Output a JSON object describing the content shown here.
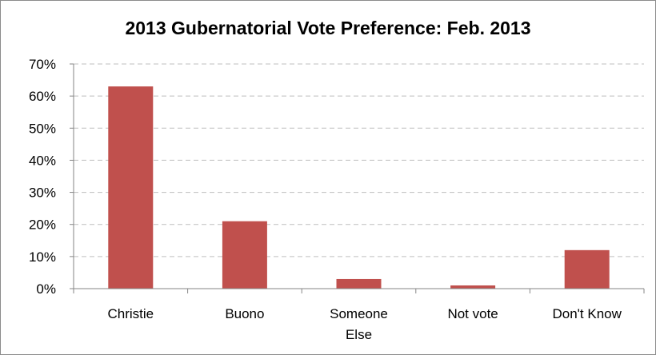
{
  "chart_data": {
    "type": "bar",
    "title": "2013 Gubernatorial Vote Preference: Feb. 2013",
    "categories": [
      [
        "Christie"
      ],
      [
        "Buono"
      ],
      [
        "Someone",
        "Else"
      ],
      [
        "Not vote"
      ],
      [
        "Don't Know"
      ]
    ],
    "values": [
      63,
      21,
      3,
      1,
      12
    ],
    "ylim": [
      0,
      70
    ],
    "ytick_values": [
      0,
      10,
      20,
      30,
      40,
      50,
      60,
      70
    ],
    "ytick_labels": [
      "0%",
      "10%",
      "20%",
      "30%",
      "40%",
      "50%",
      "60%",
      "70%"
    ],
    "grid": true,
    "grid_style": "dashed",
    "legend": "none",
    "bar_color": "#c0504d",
    "grid_color": "#bfbfbf",
    "axis_color": "#868686"
  }
}
